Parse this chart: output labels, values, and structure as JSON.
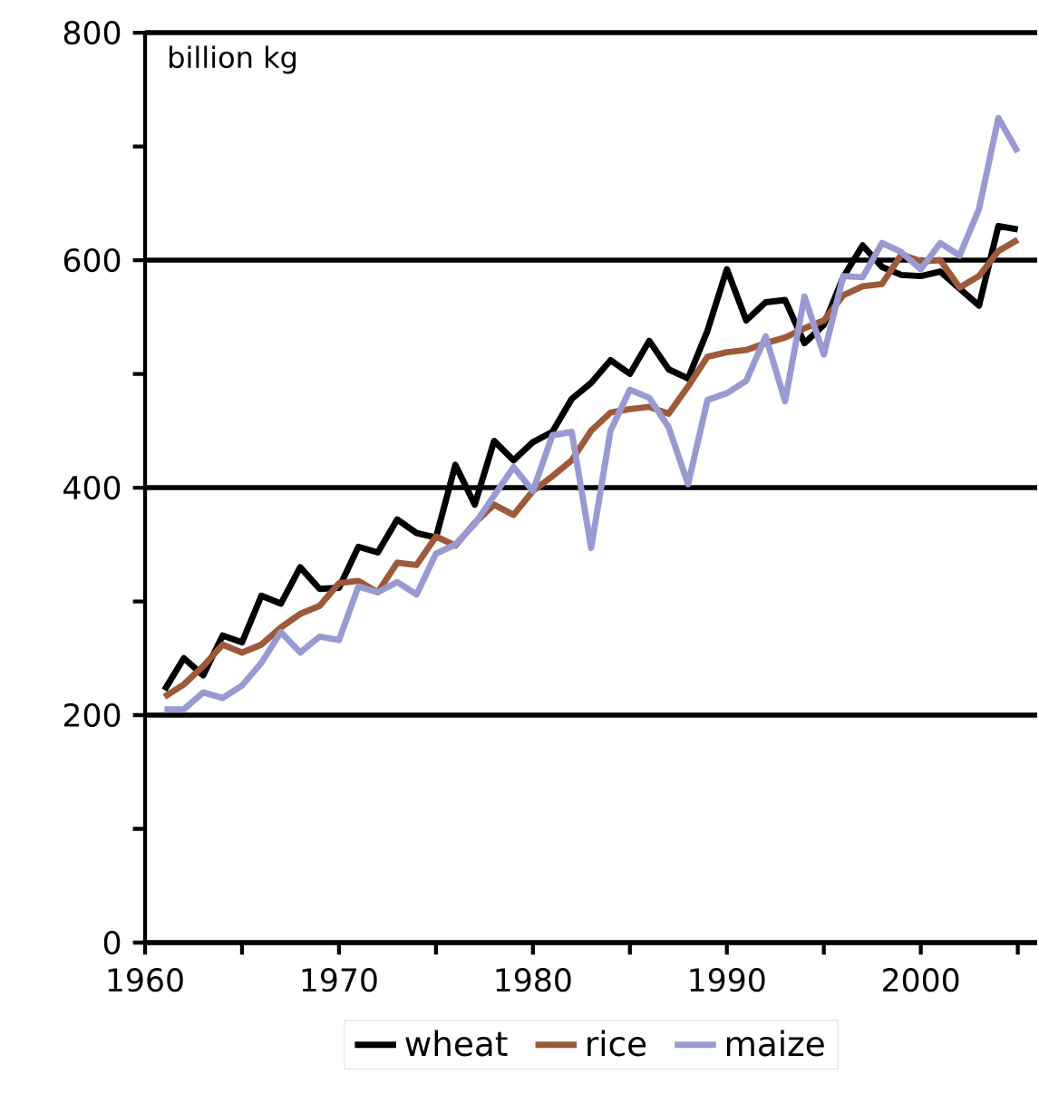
{
  "chart_data": {
    "type": "line",
    "ylabel": "billion kg",
    "x": [
      1961,
      1962,
      1963,
      1964,
      1965,
      1966,
      1967,
      1968,
      1969,
      1970,
      1971,
      1972,
      1973,
      1974,
      1975,
      1976,
      1977,
      1978,
      1979,
      1980,
      1981,
      1982,
      1983,
      1984,
      1985,
      1986,
      1987,
      1988,
      1989,
      1990,
      1991,
      1992,
      1993,
      1994,
      1995,
      1996,
      1997,
      1998,
      1999,
      2000,
      2001,
      2002,
      2003,
      2004,
      2005
    ],
    "series": [
      {
        "name": "wheat",
        "color": "#000000",
        "values": [
          222,
          250,
          235,
          270,
          264,
          305,
          298,
          330,
          311,
          312,
          348,
          343,
          372,
          360,
          356,
          420,
          385,
          441,
          424,
          440,
          449,
          478,
          492,
          512,
          500,
          529,
          504,
          496,
          538,
          592,
          547,
          563,
          565,
          527,
          543,
          585,
          613,
          594,
          587,
          586,
          590,
          575,
          560,
          630,
          627
        ]
      },
      {
        "name": "rice",
        "color": "#9c5a3a",
        "values": [
          216,
          227,
          243,
          262,
          255,
          262,
          277,
          289,
          296,
          316,
          318,
          308,
          334,
          332,
          357,
          349,
          369,
          385,
          376,
          397,
          410,
          424,
          450,
          466,
          469,
          471,
          465,
          489,
          515,
          519,
          521,
          527,
          532,
          540,
          547,
          569,
          577,
          579,
          605,
          599,
          600,
          576,
          586,
          608,
          618
        ]
      },
      {
        "name": "maize",
        "color": "#9a9ad2",
        "values": [
          205,
          205,
          220,
          215,
          226,
          246,
          273,
          255,
          269,
          266,
          313,
          308,
          317,
          306,
          342,
          350,
          368,
          393,
          418,
          397,
          446,
          449,
          347,
          450,
          486,
          479,
          453,
          403,
          477,
          483,
          494,
          533,
          476,
          568,
          517,
          586,
          585,
          615,
          607,
          592,
          615,
          604,
          645,
          725,
          695
        ]
      }
    ],
    "xlim": [
      1960,
      2006
    ],
    "ylim": [
      0,
      800
    ],
    "xticks": [
      1960,
      {
        "value": 1965,
        "label": null
      },
      1970,
      {
        "value": 1975,
        "label": null
      },
      1980,
      {
        "value": 1985,
        "label": null
      },
      1990,
      {
        "value": 1995,
        "label": null
      },
      2000,
      {
        "value": 2005,
        "label": null
      }
    ],
    "yticks": [
      0,
      {
        "value": 100,
        "label": null
      },
      200,
      {
        "value": 300,
        "label": null
      },
      400,
      {
        "value": 500,
        "label": null
      },
      600,
      {
        "value": 700,
        "label": null
      },
      800
    ],
    "grid": "y",
    "legend": "bottom",
    "marker": "none",
    "line_style": "solid"
  }
}
